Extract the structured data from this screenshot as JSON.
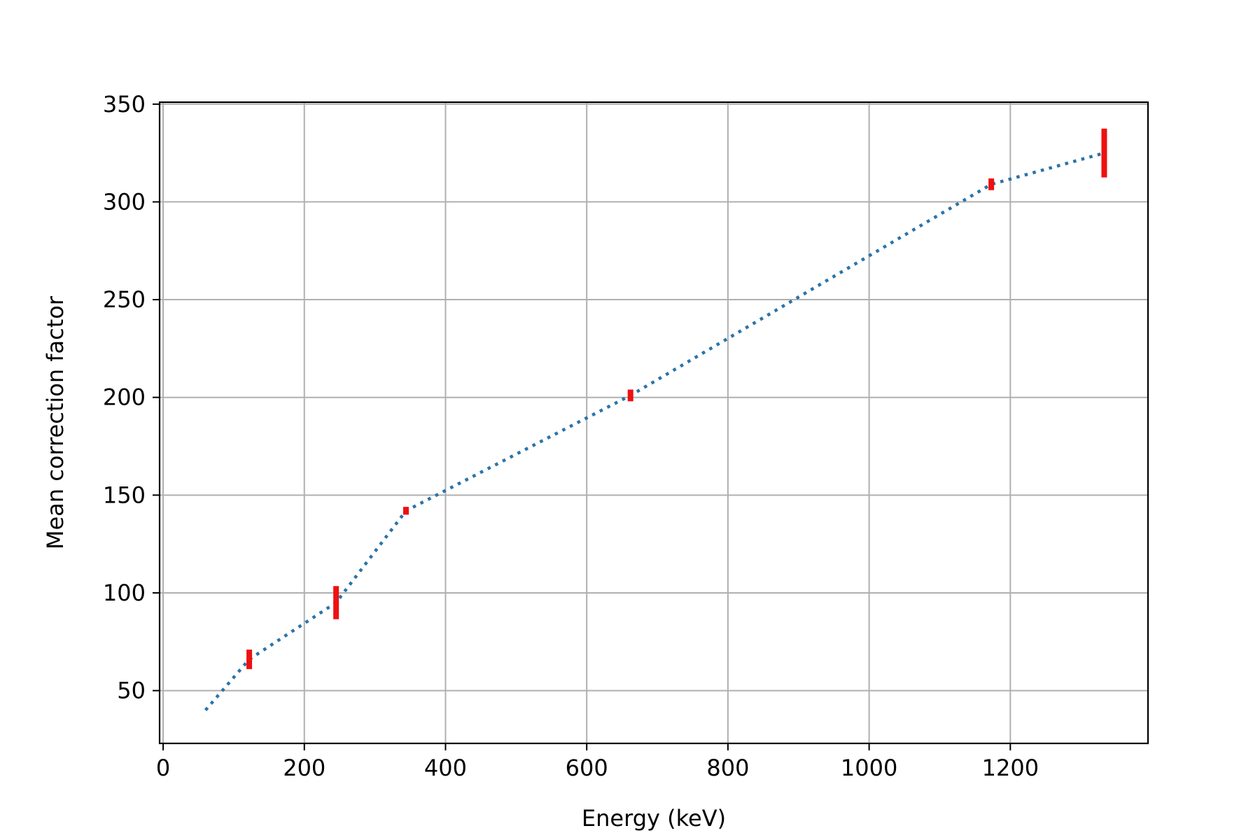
{
  "chart_data": {
    "type": "line",
    "title": "",
    "xlabel": "Energy (keV)",
    "ylabel": "Mean correction factor",
    "xlim": [
      -5,
      1395
    ],
    "ylim": [
      23,
      351
    ],
    "xticks": [
      0,
      200,
      400,
      600,
      800,
      1000,
      1200
    ],
    "yticks": [
      50,
      100,
      150,
      200,
      250,
      300,
      350
    ],
    "grid": true,
    "legend": "none",
    "series": [
      {
        "style": "dotted",
        "color": "#2a74a8",
        "x": [
          60,
          122,
          245,
          344,
          662,
          1173,
          1333
        ],
        "y": [
          40,
          66,
          95,
          142,
          201,
          309,
          325
        ]
      }
    ],
    "error_bars": {
      "color": "#ee1111",
      "x": [
        122,
        245,
        344,
        662,
        1173,
        1333
      ],
      "y": [
        66,
        95,
        142,
        201,
        309,
        325
      ],
      "err": [
        5,
        8.5,
        2,
        3,
        3,
        12.5
      ]
    }
  }
}
